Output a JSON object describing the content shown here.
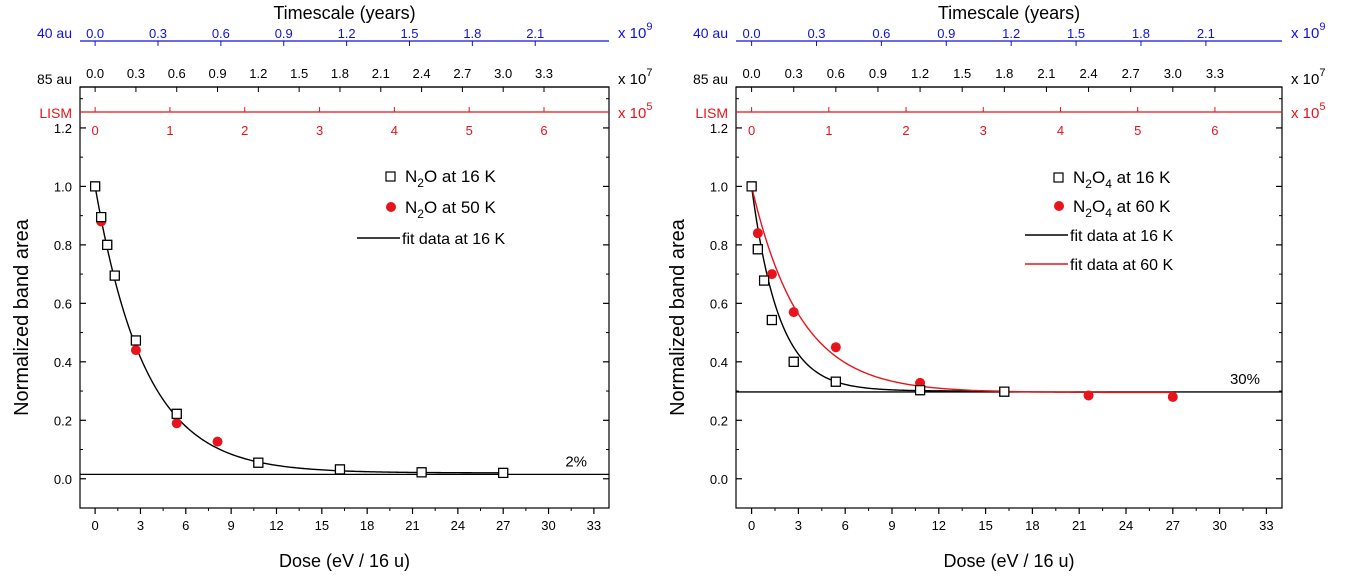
{
  "colors": {
    "black": "#000000",
    "red": "#e8131b",
    "blue": "#1010e0"
  },
  "chart_data": [
    {
      "type": "scatter",
      "top_title": "Timescale (years)",
      "xlabel": "Dose (eV / 16 u)",
      "ylabel": "Normalized band area",
      "xlim": [
        -1,
        34
      ],
      "ylim": [
        -0.1,
        1.34
      ],
      "xticks": [
        0,
        3,
        6,
        9,
        12,
        15,
        18,
        21,
        24,
        27,
        30,
        33
      ],
      "yticks": [
        0.0,
        0.2,
        0.4,
        0.6,
        0.8,
        1.0,
        1.2
      ],
      "grid": false,
      "legend_position": "top-right",
      "top_axes": [
        {
          "label": "40 au",
          "multiplier_base": "x 10",
          "multiplier_exp": "9",
          "color": "#1010e0",
          "ticks": [
            "0.0",
            "0.3",
            "0.6",
            "0.9",
            "1.2",
            "1.5",
            "1.8",
            "2.1"
          ],
          "dose_positions": [
            0,
            4.16,
            8.32,
            12.48,
            16.64,
            20.8,
            24.96,
            29.12
          ]
        },
        {
          "label": "85 au",
          "multiplier_base": "x 10",
          "multiplier_exp": "7",
          "color": "#000000",
          "ticks": [
            "0.0",
            "0.3",
            "0.6",
            "0.9",
            "1.2",
            "1.5",
            "1.8",
            "2.1",
            "2.4",
            "2.7",
            "3.0",
            "3.3"
          ],
          "dose_positions": [
            0,
            2.7,
            5.4,
            8.1,
            10.8,
            13.5,
            16.2,
            18.9,
            21.6,
            24.3,
            27.0,
            29.7
          ]
        },
        {
          "label": "LISM",
          "multiplier_base": "x 10",
          "multiplier_exp": "5",
          "color": "#e8131b",
          "ticks": [
            "0",
            "1",
            "2",
            "3",
            "4",
            "5",
            "6"
          ],
          "dose_positions": [
            0,
            4.95,
            9.9,
            14.85,
            19.8,
            24.75,
            29.7
          ]
        }
      ],
      "series": [
        {
          "name": "N₂O at 16 K",
          "marker": "open-square",
          "color": "#000000",
          "points": [
            [
              0,
              1.0
            ],
            [
              0.4,
              0.895
            ],
            [
              0.8,
              0.8
            ],
            [
              1.3,
              0.695
            ],
            [
              2.7,
              0.473
            ],
            [
              5.4,
              0.222
            ],
            [
              10.8,
              0.055
            ],
            [
              16.2,
              0.032
            ],
            [
              21.6,
              0.022
            ],
            [
              27.0,
              0.02
            ]
          ]
        },
        {
          "name": "N₂O at 50 K",
          "marker": "filled-circle",
          "color": "#e8131b",
          "points": [
            [
              0,
              1.0
            ],
            [
              0.4,
              0.88
            ],
            [
              1.3,
              0.695
            ],
            [
              2.7,
              0.44
            ],
            [
              5.4,
              0.19
            ],
            [
              8.1,
              0.127
            ]
          ]
        },
        {
          "name": "fit data at 16 K",
          "marker": "line",
          "color": "#000000",
          "fit": {
            "y0": 0.02,
            "A": 0.98,
            "tau": 3.3,
            "x_max": 27.0
          }
        }
      ],
      "reference_line": {
        "y": 0.015,
        "label": "2%"
      }
    },
    {
      "type": "scatter",
      "top_title": "Timescale (years)",
      "xlabel": "Dose (eV / 16 u)",
      "ylabel": "Normalized band area",
      "xlim": [
        -1,
        34
      ],
      "ylim": [
        -0.1,
        1.34
      ],
      "xticks": [
        0,
        3,
        6,
        9,
        12,
        15,
        18,
        21,
        24,
        27,
        30,
        33
      ],
      "yticks": [
        0.0,
        0.2,
        0.4,
        0.6,
        0.8,
        1.0,
        1.2
      ],
      "grid": false,
      "legend_position": "top-right",
      "top_axes": [
        {
          "label": "40 au",
          "multiplier_base": "x 10",
          "multiplier_exp": "9",
          "color": "#1010e0",
          "ticks": [
            "0.0",
            "0.3",
            "0.6",
            "0.9",
            "1.2",
            "1.5",
            "1.8",
            "2.1"
          ],
          "dose_positions": [
            0,
            4.16,
            8.32,
            12.48,
            16.64,
            20.8,
            24.96,
            29.12
          ]
        },
        {
          "label": "85 au",
          "multiplier_base": "x 10",
          "multiplier_exp": "7",
          "color": "#000000",
          "ticks": [
            "0.0",
            "0.3",
            "0.6",
            "0.9",
            "1.2",
            "1.5",
            "1.8",
            "2.1",
            "2.4",
            "2.7",
            "3.0",
            "3.3"
          ],
          "dose_positions": [
            0,
            2.7,
            5.4,
            8.1,
            10.8,
            13.5,
            16.2,
            18.9,
            21.6,
            24.3,
            27.0,
            29.7
          ]
        },
        {
          "label": "LISM",
          "multiplier_base": "x 10",
          "multiplier_exp": "5",
          "color": "#e8131b",
          "ticks": [
            "0",
            "1",
            "2",
            "3",
            "4",
            "5",
            "6"
          ],
          "dose_positions": [
            0,
            4.95,
            9.9,
            14.85,
            19.8,
            24.75,
            29.7
          ]
        }
      ],
      "series": [
        {
          "name": "N₂O₄ at 16 K",
          "marker": "open-square",
          "color": "#000000",
          "points": [
            [
              0,
              1.0
            ],
            [
              0.4,
              0.785
            ],
            [
              0.8,
              0.678
            ],
            [
              1.3,
              0.543
            ],
            [
              2.7,
              0.4
            ],
            [
              5.4,
              0.332
            ],
            [
              10.8,
              0.303
            ],
            [
              16.2,
              0.298
            ]
          ]
        },
        {
          "name": "N₂O₄ at 60 K",
          "marker": "filled-circle",
          "color": "#e8131b",
          "points": [
            [
              0,
              1.0
            ],
            [
              0.4,
              0.84
            ],
            [
              1.3,
              0.7
            ],
            [
              2.7,
              0.57
            ],
            [
              5.4,
              0.45
            ],
            [
              10.8,
              0.328
            ],
            [
              21.6,
              0.285
            ],
            [
              27.0,
              0.28
            ]
          ]
        },
        {
          "name": "fit data at 16 K",
          "marker": "line",
          "color": "#000000",
          "fit": {
            "y0": 0.3,
            "A": 0.7,
            "tau": 1.75,
            "x_max": 16.2
          }
        },
        {
          "name": "fit data at 60 K",
          "marker": "line",
          "color": "#e8131b",
          "fit": {
            "y0": 0.295,
            "A": 0.705,
            "tau": 3.1,
            "x_max": 27.0
          }
        }
      ],
      "reference_line": {
        "y": 0.297,
        "label": "30%"
      }
    }
  ]
}
